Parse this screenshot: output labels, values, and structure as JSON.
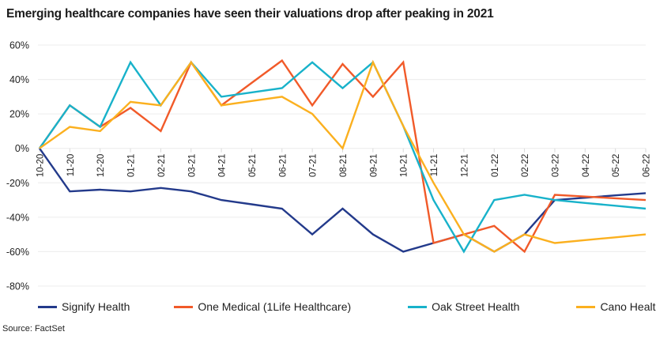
{
  "chart_data": {
    "type": "line",
    "title": "Emerging healthcare companies have seen their valuations drop after peaking in 2021",
    "xlabel": "",
    "ylabel": "",
    "x": [
      "10-20",
      "11-20",
      "12-20",
      "01-21",
      "02-21",
      "03-21",
      "04-21",
      "05-21",
      "06-21",
      "07-21",
      "08-21",
      "09-21",
      "10-21",
      "11-21",
      "12-21",
      "01-22",
      "02-22",
      "03-22",
      "04-22",
      "05-22",
      "06-22"
    ],
    "ylim": [
      -80,
      60
    ],
    "yticks": [
      60,
      40,
      20,
      0,
      -20,
      -40,
      -60,
      -80
    ],
    "ytick_labels": [
      "60%",
      "40%",
      "20%",
      "0%",
      "-20%",
      "-40%",
      "-60%",
      "-80%"
    ],
    "grid": true,
    "legend_position": "bottom",
    "series": [
      {
        "name": "Signify Health",
        "color": "#233a8b",
        "values": [
          0,
          -25,
          -24,
          -25,
          -23,
          -25,
          -30,
          -32.5,
          -35,
          -50,
          -35,
          -50,
          -60,
          -55,
          -50,
          -60,
          -50,
          -30,
          -28.7,
          -27.3,
          -26
        ]
      },
      {
        "name": "One Medical (1Life Healthcare)",
        "color": "#f15a29",
        "values": [
          0,
          25,
          12.5,
          23.5,
          10,
          50,
          25,
          38,
          51,
          25,
          49,
          30,
          50,
          -55,
          -50,
          -45,
          -60,
          -27,
          -28,
          -29,
          -30
        ]
      },
      {
        "name": "Oak Street Health",
        "color": "#18b2ca",
        "values": [
          0,
          25,
          12.5,
          50,
          25,
          50,
          30,
          32.5,
          35,
          50,
          35,
          50,
          13,
          -30,
          -60,
          -30,
          -27,
          -30,
          -31.7,
          -33.3,
          -35
        ]
      },
      {
        "name": "Cano Health",
        "color": "#fbb01f",
        "values": [
          0,
          12.5,
          10,
          27,
          25,
          50,
          25,
          27.5,
          30,
          20,
          0,
          50,
          13,
          -20,
          -50,
          -60,
          -50,
          -55,
          -53.3,
          -51.7,
          -50
        ]
      }
    ]
  },
  "source": "Source: FactSet"
}
